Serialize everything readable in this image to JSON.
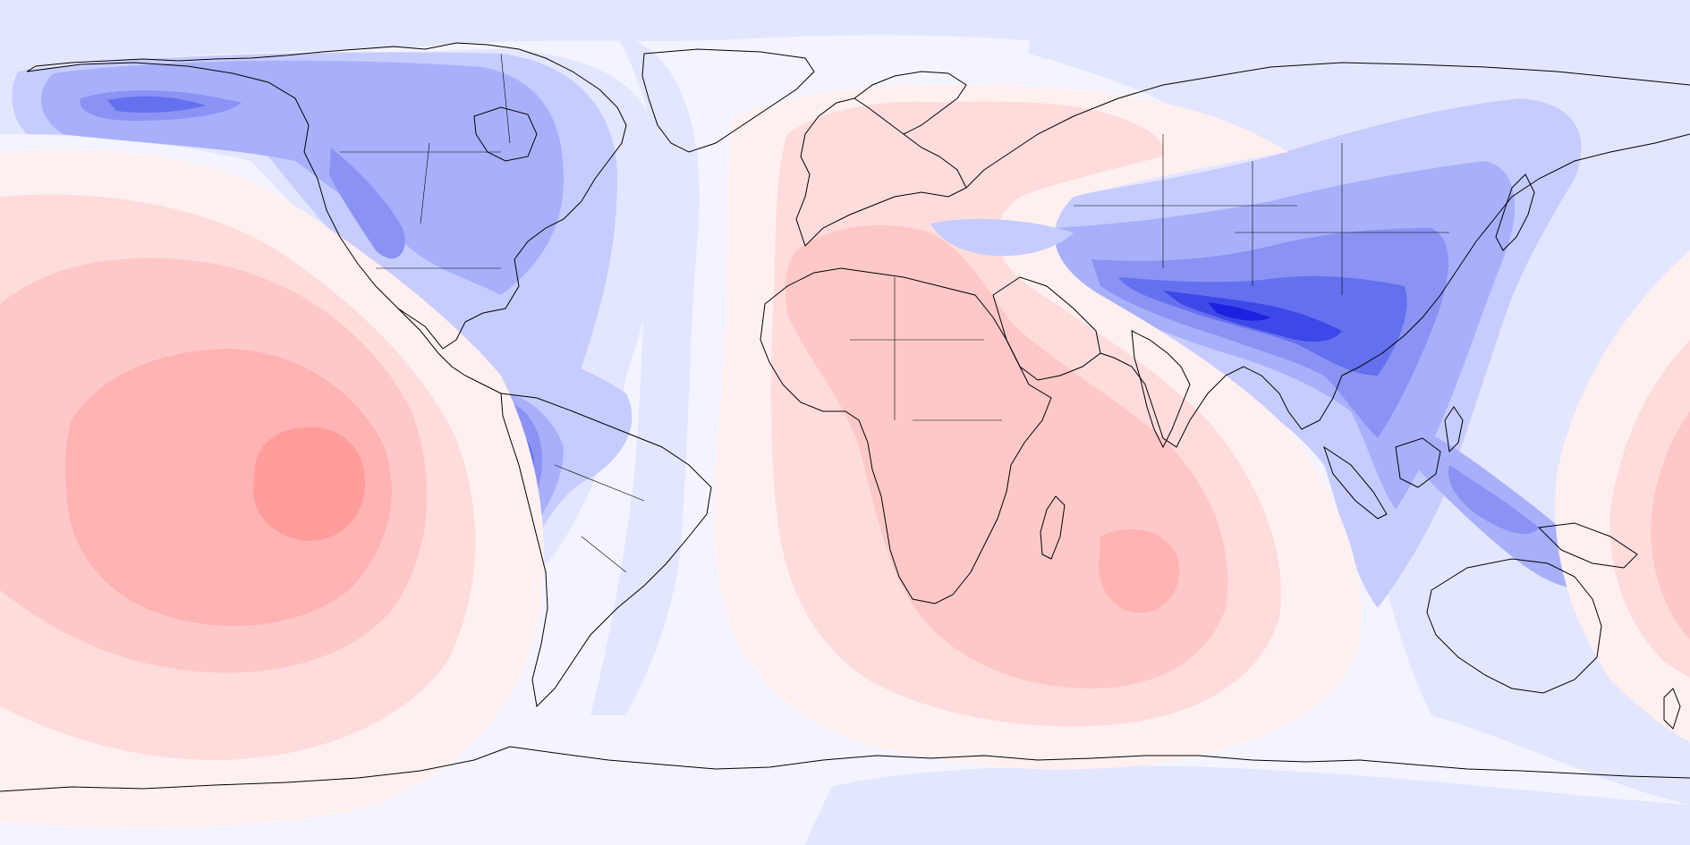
{
  "map": {
    "projection": "equirectangular",
    "center_longitude": 0,
    "field_type": "filled-contour anomaly",
    "colors": {
      "blue_1": "#e3e6ff",
      "blue_2": "#c7ccff",
      "blue_3": "#a8b0fb",
      "blue_4": "#8a92f4",
      "blue_5": "#6470ee",
      "blue_6": "#3d48e8",
      "blue_7": "#1a22e0",
      "neutral": "#f3f4ff",
      "red_1": "#fff0f0",
      "red_2": "#ffdcdc",
      "red_3": "#ffc8c8",
      "red_4": "#ffb3b3",
      "red_5": "#ff9d9d",
      "coastline": "#000000"
    }
  }
}
